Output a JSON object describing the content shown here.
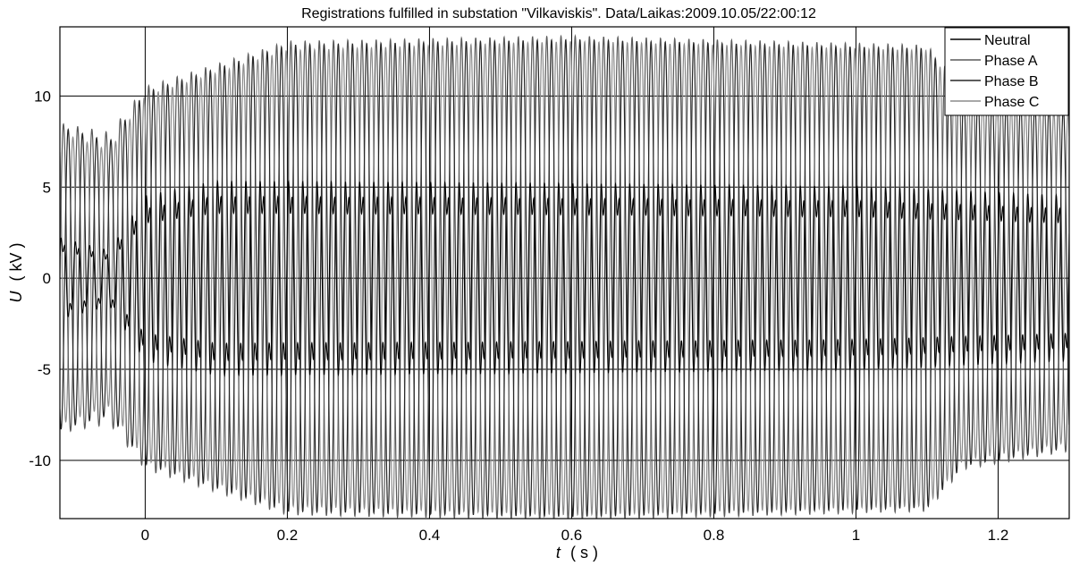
{
  "chart_data": {
    "type": "line",
    "title": "Registrations fulfilled in substation \"Vilkaviskis\". Data/Laikas:2009.10.05/22:00:12",
    "xlabel": {
      "symbol": "t",
      "unit": "( s )"
    },
    "ylabel": {
      "symbol": "U",
      "unit": "( kV )"
    },
    "xlim": [
      -0.12,
      1.3
    ],
    "ylim": [
      -13.2,
      13.8
    ],
    "xticks": [
      0,
      0.2,
      0.4,
      0.6,
      0.8,
      1,
      1.2
    ],
    "xtick_labels": [
      "0",
      "0.2",
      "0.4",
      "0.6",
      "0.8",
      "1",
      "1.2"
    ],
    "yticks": [
      -10,
      -5,
      0,
      5,
      10
    ],
    "ytick_labels": [
      "-10",
      "-5",
      "0",
      "5",
      "10"
    ],
    "grid": true,
    "legend_position": "top-right",
    "frequency_hz": 50,
    "series": [
      {
        "name": "Neutral",
        "color": "#000000",
        "envelope": [
          {
            "t": -0.12,
            "amp": 2.2
          },
          {
            "t": -0.05,
            "amp": 1.5
          },
          {
            "t": 0.0,
            "amp": 4.5
          },
          {
            "t": 0.1,
            "amp": 5.3
          },
          {
            "t": 0.5,
            "amp": 5.2
          },
          {
            "t": 1.0,
            "amp": 5.0
          },
          {
            "t": 1.3,
            "amp": 4.5
          }
        ]
      },
      {
        "name": "Phase A",
        "color": "#5a5a5a",
        "envelope": [
          {
            "t": -0.12,
            "amp": 8.5
          },
          {
            "t": -0.05,
            "amp": 8.0
          },
          {
            "t": 0.0,
            "amp": 10.5
          },
          {
            "t": 0.2,
            "amp": 13.0
          },
          {
            "t": 0.6,
            "amp": 13.3
          },
          {
            "t": 1.1,
            "amp": 12.8
          },
          {
            "t": 1.15,
            "amp": 10.5
          },
          {
            "t": 1.3,
            "amp": 9.5
          }
        ]
      },
      {
        "name": "Phase B",
        "color": "#262626",
        "envelope": [
          {
            "t": -0.12,
            "amp": 8.3
          },
          {
            "t": -0.05,
            "amp": 7.5
          },
          {
            "t": 0.0,
            "amp": 10.2
          },
          {
            "t": 0.2,
            "amp": 12.8
          },
          {
            "t": 0.6,
            "amp": 13.1
          },
          {
            "t": 1.1,
            "amp": 12.6
          },
          {
            "t": 1.15,
            "amp": 10.3
          },
          {
            "t": 1.3,
            "amp": 9.3
          }
        ]
      },
      {
        "name": "Phase C",
        "color": "#8c8c8c",
        "envelope": [
          {
            "t": -0.12,
            "amp": 8.0
          },
          {
            "t": -0.05,
            "amp": 7.0
          },
          {
            "t": 0.0,
            "amp": 10.0
          },
          {
            "t": 0.2,
            "amp": 12.5
          },
          {
            "t": 0.6,
            "amp": 13.0
          },
          {
            "t": 1.1,
            "amp": 12.5
          },
          {
            "t": 1.15,
            "amp": 10.0
          },
          {
            "t": 1.3,
            "amp": 9.0
          }
        ]
      }
    ]
  }
}
